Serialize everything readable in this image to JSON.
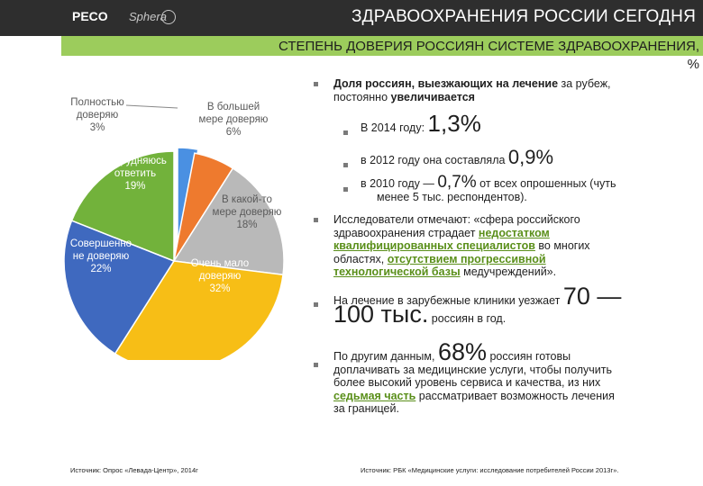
{
  "header": {
    "logo_text": "PECO",
    "logo_text2": "Sphera",
    "title": "ЗДРАВООХРАНЕНИЯ РОССИИ СЕГОДНЯ",
    "subtitle": "СТЕПЕНЬ ДОВЕРИЯ РОССИЯН СИСТЕМЕ ЗДРАВООХРАНЕНИЯ,",
    "subtitle_pct": "%"
  },
  "chart_data": {
    "type": "pie",
    "slices": [
      {
        "label": "Полностью доверяю",
        "value": 3,
        "value_label": "3%",
        "color": "#4a90e2"
      },
      {
        "label": "В большей мере доверяю",
        "value": 6,
        "value_label": "6%",
        "color": "#ee7a2e"
      },
      {
        "label": "В какой-то мере доверяю",
        "value": 18,
        "value_label": "18%",
        "color": "#b9b9b9"
      },
      {
        "label": "Очень мало доверяю",
        "value": 32,
        "value_label": "32%",
        "color": "#f7be16"
      },
      {
        "label": "Совершенно не доверяю",
        "value": 22,
        "value_label": "22%",
        "color": "#3f69bf"
      },
      {
        "label": "Затрудняюсь ответить",
        "value": 19,
        "value_label": "19%",
        "color": "#72b23b"
      }
    ]
  },
  "labels": {
    "full_1": "Полностью",
    "full_2": "доверяю",
    "full_3": "3%",
    "more_1": "В большей",
    "more_2": "мере доверяю",
    "more_3": "6%",
    "some_1": "В какой-то",
    "some_2": "мере доверяю",
    "some_3": "18%",
    "little_1": "Очень мало",
    "little_2": "доверяю",
    "little_3": "32%",
    "none_1": "Совершенно",
    "none_2": "не доверяю",
    "none_3": "22%",
    "hard_1": "Затрудняюсь",
    "hard_2": "ответить",
    "hard_3": "19%"
  },
  "right": {
    "p1_bold": "Доля россиян, выезжающих на лечение",
    "p1_rest": " за рубеж,",
    "p1_line2a": "постоянно ",
    "p1_line2b": "увеличивается",
    "s1_text": "В 2014 году: ",
    "s1_big": "1,3%",
    "s2_text": "в 2012 году она составляла ",
    "s2_big": "0,9%",
    "s3_text": "в 2010 году — ",
    "s3_big": "0,7%",
    "s3_rest": " от всех опрошенных (чуть",
    "s3_line2": "менее 5 тыс. респондентов).",
    "p2_line1": "Исследователи отмечают: «сфера российского",
    "p2_line2": "здравоохранения страдает ",
    "p2_line2b": "недостатком",
    "p2_line3": "квалифицированных специалистов",
    "p2_line3b": " во многих",
    "p2_line4": "областях, ",
    "p2_line4b": "отсутствием прогрессивной",
    "p2_line5": "технологической базы",
    "p2_line5b": " медучреждений».",
    "p3_text": "На лечение в зарубежные клиники уезжает ",
    "p3_big1": "70 —",
    "p3_big2": "100 тыс.",
    "p3_rest": " россиян в год.",
    "p4_text": "По другим данным, ",
    "p4_big": "68%",
    "p4_rest": " россиян готовы",
    "p4_line2": "доплачивать за медицинские услуги, чтобы получить",
    "p4_line3": "более высокий уровень сервиса и качества, из них",
    "p4_line4": "седьмая часть",
    "p4_line4b": " рассматривает возможность лечения",
    "p4_line5": "за границей."
  },
  "sources": {
    "left": "Источник: Опрос «Левада-Центр», 2014г",
    "right": "Источник: РБК «Медицинские услуги: исследование потребителей России 2013г»."
  }
}
